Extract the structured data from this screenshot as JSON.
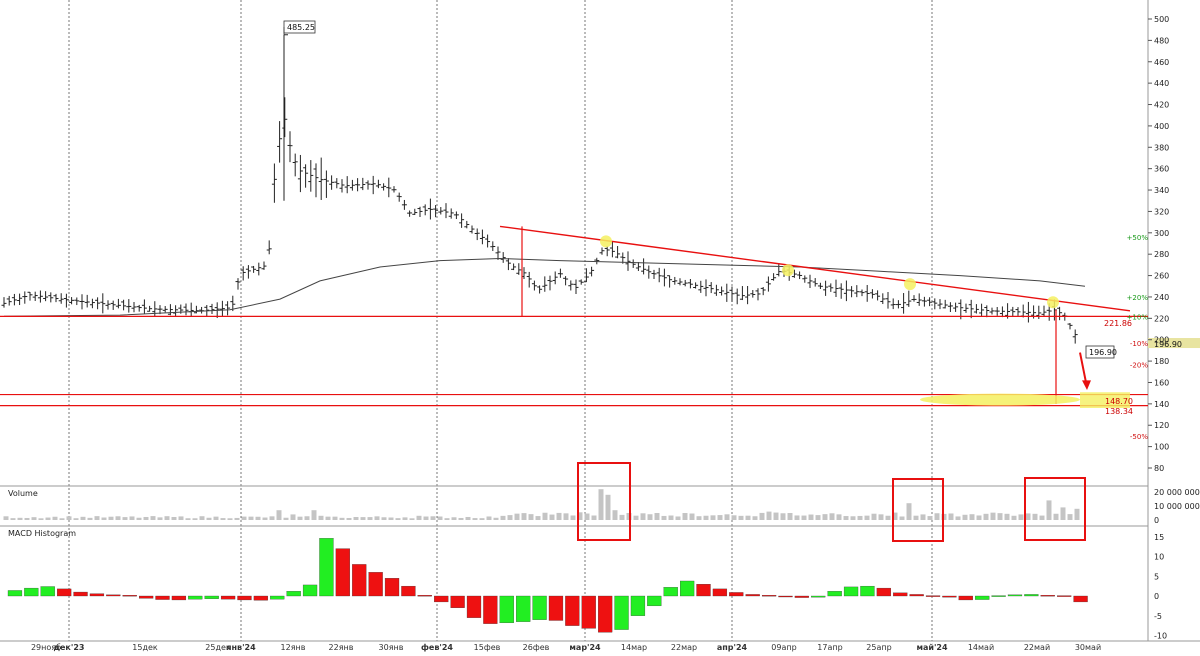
{
  "panels": {
    "volume_label": "Volume",
    "macd_label": "MACD Histogram"
  },
  "price_axis": {
    "ticks": [
      "500",
      "480",
      "460",
      "440",
      "420",
      "400",
      "380",
      "360",
      "340",
      "320",
      "300",
      "280",
      "260",
      "240",
      "220",
      "200",
      "180",
      "160",
      "140",
      "120",
      "100",
      "80"
    ]
  },
  "volume_axis": {
    "ticks": [
      "20 000 000",
      "10 000 000",
      "0"
    ]
  },
  "macd_axis": {
    "ticks": [
      "15",
      "10",
      "5",
      "0",
      "-5",
      "-10"
    ]
  },
  "date_axis": {
    "labels": [
      "29нояб",
      "дек'23",
      "15дек",
      "25дек",
      "янв'24",
      "12янв",
      "22янв",
      "30янв",
      "фев'24",
      "15фев",
      "26фев",
      "мар'24",
      "14мар",
      "22мар",
      "апр'24",
      "09апр",
      "17апр",
      "25апр",
      "май'24",
      "14май",
      "22май",
      "30май"
    ]
  },
  "annotations": {
    "peak": "485.25",
    "current": "196.90",
    "current_axis": "196.90",
    "level_221": "221.86",
    "pct_plus50": "+50%",
    "pct_plus20": "+20%",
    "pct_plus10": "+10%",
    "pct_minus10": "-10%",
    "pct_minus20": "-20%",
    "pct_minus50": "-50%",
    "level_148": "148.70",
    "level_138": "138.34"
  },
  "colors": {
    "trend_line": "#e81010",
    "macd_positive": "#22ee22",
    "macd_negative": "#ee1111",
    "volume_bar": "#c4c4c4",
    "highlight": "#f4f060",
    "moving_average": "#444444",
    "price_bar": "#222222"
  },
  "chart_data": [
    {
      "type": "line",
      "name": "price-ohlc",
      "ylim": [
        70,
        510
      ],
      "scale": "linear",
      "x": [
        "29нояб",
        "дек'23",
        "15дек",
        "25дек",
        "янв'24",
        "12янв",
        "22янв",
        "30янв",
        "фев'24",
        "15фев",
        "26фев",
        "мар'24",
        "14мар",
        "22мар",
        "апр'24",
        "09апр",
        "17апр",
        "25апр",
        "май'24",
        "14май",
        "22май",
        "30май"
      ],
      "close_values": [
        235,
        240,
        233,
        228,
        232,
        265,
        358,
        344,
        320,
        310,
        252,
        262,
        275,
        255,
        240,
        265,
        248,
        232,
        228,
        225,
        225,
        196.9
      ],
      "peak": 485.25,
      "last_close": 196.9,
      "horizontal_levels": [
        221.86,
        148.7,
        138.34
      ]
    },
    {
      "type": "bar",
      "name": "volume",
      "ylim": [
        0,
        25000000
      ],
      "tick_values": [
        0,
        10000000,
        20000000
      ]
    },
    {
      "type": "bar",
      "name": "macd-histogram",
      "ylim": [
        -12,
        17
      ],
      "values": [
        1.4,
        2.0,
        2.4,
        1.8,
        1.0,
        0.6,
        0.3,
        0.2,
        -0.6,
        -0.9,
        -1.0,
        -0.8,
        -0.7,
        -0.8,
        -1.0,
        -1.1,
        -0.8,
        1.2,
        2.8,
        14.6,
        12.0,
        8.0,
        6.0,
        4.5,
        2.5,
        0.2,
        -1.5,
        -3.0,
        -5.5,
        -7.0,
        -6.8,
        -6.5,
        -6.0,
        -6.2,
        -7.5,
        -8.2,
        -9.2,
        -8.5,
        -5.0,
        -2.5,
        2.2,
        3.8,
        3.0,
        1.8,
        0.9,
        0.4,
        0.2,
        -0.1,
        -0.4,
        -0.3,
        1.2,
        2.3,
        2.5,
        2.0,
        0.8,
        0.4,
        0.1,
        -0.3,
        -1.0,
        -0.9,
        0.1,
        0.3,
        0.4,
        0.2,
        0.1,
        -1.5
      ]
    }
  ]
}
